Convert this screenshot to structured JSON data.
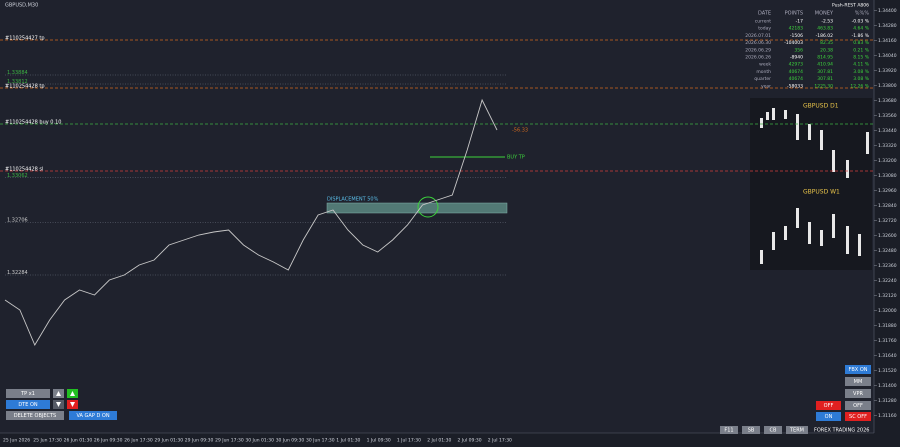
{
  "symbol": "GBPUSD,M30",
  "chart": {
    "ylim": [
      1.31044,
      1.34484
    ],
    "yticks": [
      {
        "value": 1.344,
        "label": "1.34400"
      },
      {
        "value": 1.3428,
        "label": "1.34280"
      },
      {
        "value": 1.3416,
        "label": "1.34160"
      },
      {
        "value": 1.3404,
        "label": "1.34040"
      },
      {
        "value": 1.3392,
        "label": "1.33920"
      },
      {
        "value": 1.338,
        "label": "1.33800"
      },
      {
        "value": 1.3368,
        "label": "1.33680"
      },
      {
        "value": 1.3356,
        "label": "1.33560"
      },
      {
        "value": 1.3344,
        "label": "1.33440"
      },
      {
        "value": 1.3332,
        "label": "1.33320"
      },
      {
        "value": 1.332,
        "label": "1.33200"
      },
      {
        "value": 1.3308,
        "label": "1.33080"
      },
      {
        "value": 1.3296,
        "label": "1.32960"
      },
      {
        "value": 1.3284,
        "label": "1.32840"
      },
      {
        "value": 1.3272,
        "label": "1.32720"
      },
      {
        "value": 1.326,
        "label": "1.32600"
      },
      {
        "value": 1.3248,
        "label": "1.32480"
      },
      {
        "value": 1.3236,
        "label": "1.32360"
      },
      {
        "value": 1.3224,
        "label": "1.32240"
      },
      {
        "value": 1.3212,
        "label": "1.32120"
      },
      {
        "value": 1.32,
        "label": "1.32000"
      },
      {
        "value": 1.3188,
        "label": "1.31880"
      },
      {
        "value": 1.3176,
        "label": "1.31760"
      },
      {
        "value": 1.3164,
        "label": "1.31640"
      },
      {
        "value": 1.3152,
        "label": "1.31520"
      },
      {
        "value": 1.314,
        "label": "1.31400"
      },
      {
        "value": 1.3128,
        "label": "1.31280"
      },
      {
        "value": 1.3116,
        "label": "1.31160"
      }
    ],
    "closes": [
      1.32084,
      1.32004,
      1.31724,
      1.31924,
      1.32084,
      1.32164,
      1.32124,
      1.32244,
      1.32284,
      1.32364,
      1.32404,
      1.32524,
      1.32564,
      1.32604,
      1.32628,
      1.32644,
      1.32524,
      1.32444,
      1.32388,
      1.32324,
      1.32564,
      1.32764,
      1.32804,
      1.32644,
      1.32524,
      1.32468,
      1.32564,
      1.32684,
      1.32844,
      1.32884,
      1.32924,
      1.33284,
      1.33684,
      1.33444
    ],
    "time_labels": [
      "25 Jun 2026",
      "25 Jun 17:30",
      "26 Jun 01:30",
      "26 Jun 09:30",
      "26 Jun 17:30",
      "29 Jun 01:30",
      "29 Jun 09:30",
      "29 Jun 17:30",
      "30 Jun 01:30",
      "30 Jun 09:30",
      "30 Jun 17:30",
      "1 Jul 01:30",
      "1 Jul 09:30",
      "1 Jul 17:30",
      "2 Jul 01:30",
      "2 Jul 09:30",
      "2 Jul 17:30"
    ]
  },
  "levels": [
    {
      "label": "#110254427 tp",
      "price": 1.34164,
      "color": "#d2691e"
    },
    {
      "label": "#110254428 tp",
      "price": 1.3378,
      "color": "#d2691e"
    },
    {
      "label": "#110254428 buy 0.10",
      "price": 1.33492,
      "color": "#3cb043"
    },
    {
      "label": "#110254428 sl",
      "price": 1.33116,
      "color": "#d23c3c"
    }
  ],
  "price_tags": [
    {
      "value": 1.33884,
      "label": "1.33884",
      "color": "#3cb043"
    },
    {
      "value": 1.33812,
      "label": "1.33812",
      "color": "#3cb043"
    },
    {
      "value": 1.33062,
      "label": "1.33062",
      "color": "#3cb043"
    },
    {
      "value": 1.32706,
      "label": "1.32706",
      "color": "#cccccc"
    },
    {
      "value": 1.32284,
      "label": "1.32284",
      "color": "#cccccc"
    }
  ],
  "annotations": {
    "displacement": "DISPLACEMENT 50%",
    "buy_tp": "BUY TP",
    "pnl": "-56.33"
  },
  "stats": {
    "title": "Push-REST A806",
    "headers": [
      "DATE",
      "POINTS",
      "MONEY",
      "%%%"
    ],
    "rows": [
      [
        "current",
        "-17",
        "-2.53",
        "-0.03 %"
      ],
      [
        "today",
        "42183",
        "463.83",
        "4.64 %"
      ],
      [
        "2026.07.01",
        "-1506",
        "-186.02",
        "-1.86 %"
      ],
      [
        "2026.06.30",
        "-104003",
        "82.35",
        "0.83 %"
      ],
      [
        "2026.06.29",
        "356",
        "20.38",
        "0.21 %"
      ],
      [
        "2026.06.26",
        "-8940",
        "814.95",
        "8.15 %"
      ],
      [
        "week",
        "42973",
        "410.94",
        "4.11 %"
      ],
      [
        "month",
        "40674",
        "307.81",
        "3.08 %"
      ],
      [
        "quarter",
        "40674",
        "307.81",
        "3.08 %"
      ],
      [
        "year",
        "-58033",
        "1225.30",
        "12.26 %"
      ]
    ]
  },
  "mini_charts": [
    "GBPUSD  D1",
    "GBPUSD  W1"
  ],
  "left_buttons": [
    "TP x1",
    "DTE ON",
    "DELETE OBJECTS",
    "VA GAP D ON"
  ],
  "right_buttons": [
    "FBX ON",
    "MM",
    "VPR",
    "OFF",
    "OFF",
    "ON",
    "SC OFF"
  ],
  "status_bar": [
    "F11",
    "SB",
    "CB",
    "TERM",
    "FOREX TRADING 2026"
  ]
}
